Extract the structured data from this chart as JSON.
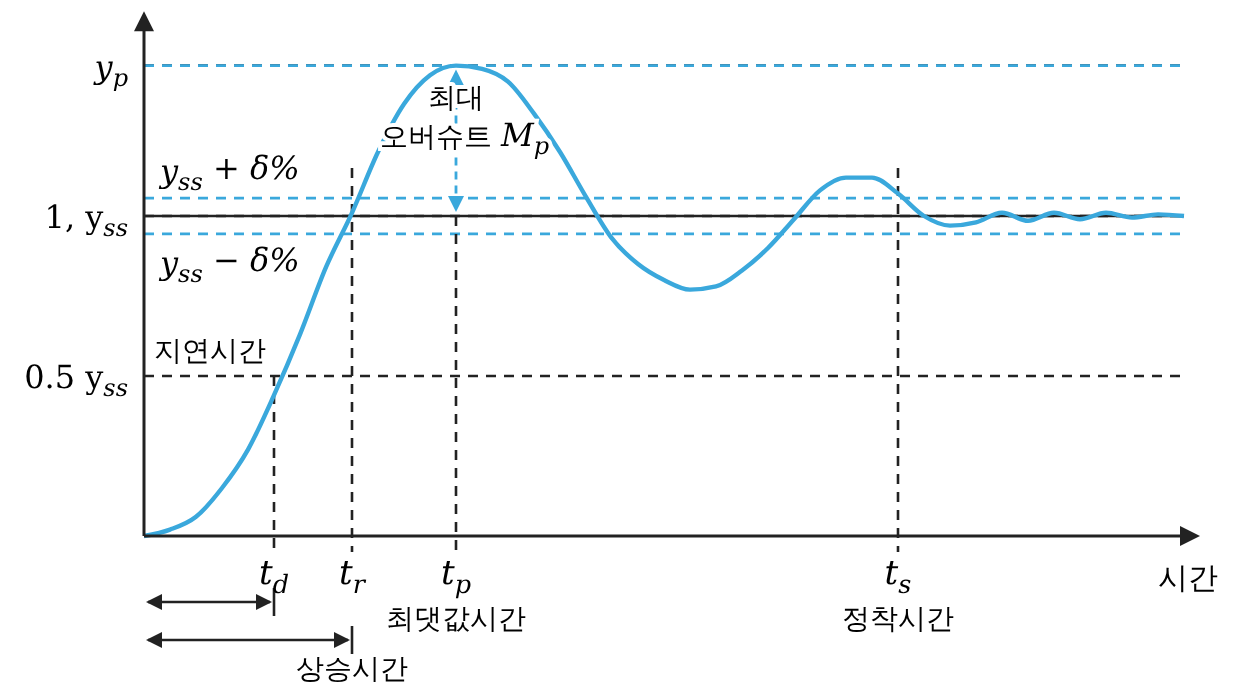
{
  "chart_data": {
    "type": "line",
    "xlabel": "시간",
    "categories": [
      null,
      null,
      null,
      null,
      null,
      "t$_{d}$",
      null,
      null,
      "t$_{r}$\n상승시간",
      null,
      null,
      null,
      "t$_{p}$\n최댓값시간",
      null,
      null,
      null,
      null,
      null,
      null,
      null,
      null,
      null,
      null,
      null,
      null,
      null,
      null,
      null,
      null,
      "t$_{s}$\n정착시간",
      null,
      null,
      null,
      null,
      null,
      null,
      null,
      null,
      null,
      null,
      null
    ],
    "series": [
      {
        "color": "#3aa8dc",
        "values": [
          0,
          0.02,
          0.06,
          0.15,
          0.27,
          0.44,
          0.63,
          0.84,
          1.01,
          1.2,
          1.35,
          1.44,
          1.47,
          1.46,
          1.42,
          1.32,
          1.2,
          1.06,
          0.93,
          0.85,
          0.8,
          0.77,
          0.78,
          0.83,
          0.9,
          0.99,
          1.08,
          1.12,
          1.12,
          1.07,
          1.0,
          0.97,
          0.98,
          1.01,
          0.985,
          1.01,
          0.99,
          1.01,
          0.995,
          1.005,
          1.0
        ]
      }
    ],
    "ylim": [
      0,
      1.59
    ],
    "yticks": [
      {
        "value": 0.5,
        "label": "0.5 y$_{ss}$"
      },
      {
        "value": 1,
        "label": "1, y$_{ss}$"
      },
      {
        "value": 1.47,
        "label": "y$_{p}$"
      }
    ],
    "ref_lines": [
      {
        "axis": "y",
        "value": 1,
        "color": "#222222",
        "line_style": "solid"
      },
      {
        "axis": "y",
        "value": 1.056,
        "label": "y$_{ss}$ + δ%",
        "color": "#3aa8dc",
        "line_style": "dashed"
      },
      {
        "axis": "y",
        "value": 0.944,
        "label": "y$_{ss}$ − δ%",
        "color": "#3aa8dc",
        "line_style": "dashed"
      },
      {
        "axis": "y",
        "value": 1.47,
        "color": "#3aa8dc",
        "line_style": "dashed"
      }
    ],
    "annotations": [
      {
        "text": "지연시간",
        "x": "t$_{d}$",
        "y": 0.5
      },
      {
        "text": "최대 오버슈트 M$_{p}$",
        "x": "t$_{p}$\n최댓값시간",
        "y": 1.47
      }
    ],
    "grid": true,
    "line_style": "solid"
  }
}
